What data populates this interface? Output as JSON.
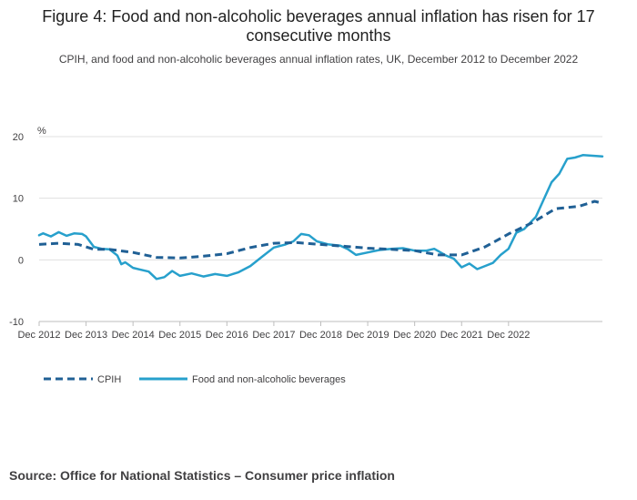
{
  "title": "Figure 4: Food and non-alcoholic beverages annual inflation has risen for 17 consecutive months",
  "subtitle": "CPIH, and food and non-alcoholic beverages annual inflation rates, UK, December 2012 to December 2022",
  "source": "Source: Office for National Statistics – Consumer price inflation",
  "colors": {
    "cpih": "#206095",
    "food": "#27a0cc",
    "grid": "#e0e0e0",
    "axis": "#bebebe",
    "text": "#414042"
  },
  "chart_data": {
    "type": "line",
    "ylabel": "%",
    "ylim": [
      -10,
      20
    ],
    "yticks": [
      -10,
      0,
      10,
      20
    ],
    "ytick_labels": [
      "-10",
      "0",
      "10",
      "20"
    ],
    "xticks": [
      "Dec 2012",
      "Dec 2013",
      "Dec 2014",
      "Dec 2015",
      "Dec 2016",
      "Dec 2017",
      "Dec 2018",
      "Dec 2019",
      "Dec 2020",
      "Dec 2021",
      "Dec 2022"
    ],
    "legend_position": "bottom-left",
    "series": [
      {
        "name": "CPIH",
        "style": "dashed",
        "anchors": [
          [
            0,
            2.5
          ],
          [
            5,
            2.7
          ],
          [
            10,
            2.5
          ],
          [
            14,
            1.7
          ],
          [
            18,
            1.7
          ],
          [
            24,
            1.2
          ],
          [
            30,
            0.4
          ],
          [
            36,
            0.3
          ],
          [
            42,
            0.6
          ],
          [
            48,
            1.0
          ],
          [
            54,
            2.0
          ],
          [
            60,
            2.7
          ],
          [
            66,
            2.8
          ],
          [
            72,
            2.5
          ],
          [
            78,
            2.2
          ],
          [
            84,
            1.9
          ],
          [
            90,
            1.7
          ],
          [
            96,
            1.5
          ],
          [
            102,
            0.8
          ],
          [
            108,
            0.8
          ],
          [
            114,
            2.1
          ],
          [
            120,
            4.2
          ],
          [
            126,
            6.0
          ],
          [
            132,
            8.3
          ],
          [
            138,
            8.7
          ],
          [
            142,
            9.5
          ],
          [
            144,
            9.2
          ]
        ]
      },
      {
        "name": "Food and non-alcoholic beverages",
        "style": "solid",
        "anchors": [
          [
            0,
            4.0
          ],
          [
            1,
            4.3
          ],
          [
            3,
            3.8
          ],
          [
            5,
            4.5
          ],
          [
            7,
            3.9
          ],
          [
            9,
            4.3
          ],
          [
            11,
            4.2
          ],
          [
            12,
            3.8
          ],
          [
            14,
            2.1
          ],
          [
            16,
            1.8
          ],
          [
            18,
            1.7
          ],
          [
            20,
            0.7
          ],
          [
            21,
            -0.7
          ],
          [
            22,
            -0.4
          ],
          [
            24,
            -1.3
          ],
          [
            26,
            -1.6
          ],
          [
            28,
            -1.9
          ],
          [
            30,
            -3.1
          ],
          [
            32,
            -2.8
          ],
          [
            34,
            -1.8
          ],
          [
            36,
            -2.6
          ],
          [
            39,
            -2.2
          ],
          [
            42,
            -2.7
          ],
          [
            45,
            -2.3
          ],
          [
            48,
            -2.6
          ],
          [
            51,
            -2.0
          ],
          [
            54,
            -1.0
          ],
          [
            57,
            0.5
          ],
          [
            60,
            2.0
          ],
          [
            63,
            2.5
          ],
          [
            65,
            3.0
          ],
          [
            67,
            4.2
          ],
          [
            69,
            4.0
          ],
          [
            71,
            3.0
          ],
          [
            74,
            2.5
          ],
          [
            77,
            2.3
          ],
          [
            79,
            1.7
          ],
          [
            81,
            0.8
          ],
          [
            84,
            1.2
          ],
          [
            87,
            1.6
          ],
          [
            90,
            1.8
          ],
          [
            93,
            1.9
          ],
          [
            96,
            1.5
          ],
          [
            99,
            1.5
          ],
          [
            101,
            1.8
          ],
          [
            104,
            0.7
          ],
          [
            106,
            0.2
          ],
          [
            108,
            -1.2
          ],
          [
            110,
            -0.6
          ],
          [
            112,
            -1.5
          ],
          [
            114,
            -1.0
          ],
          [
            116,
            -0.5
          ],
          [
            118,
            0.8
          ],
          [
            120,
            1.8
          ],
          [
            122,
            4.4
          ],
          [
            124,
            5.0
          ],
          [
            127,
            7.0
          ],
          [
            129,
            9.8
          ],
          [
            131,
            12.6
          ],
          [
            133,
            14.0
          ],
          [
            135,
            16.4
          ],
          [
            137,
            16.6
          ],
          [
            139,
            17.0
          ],
          [
            144,
            16.8
          ]
        ]
      }
    ]
  }
}
